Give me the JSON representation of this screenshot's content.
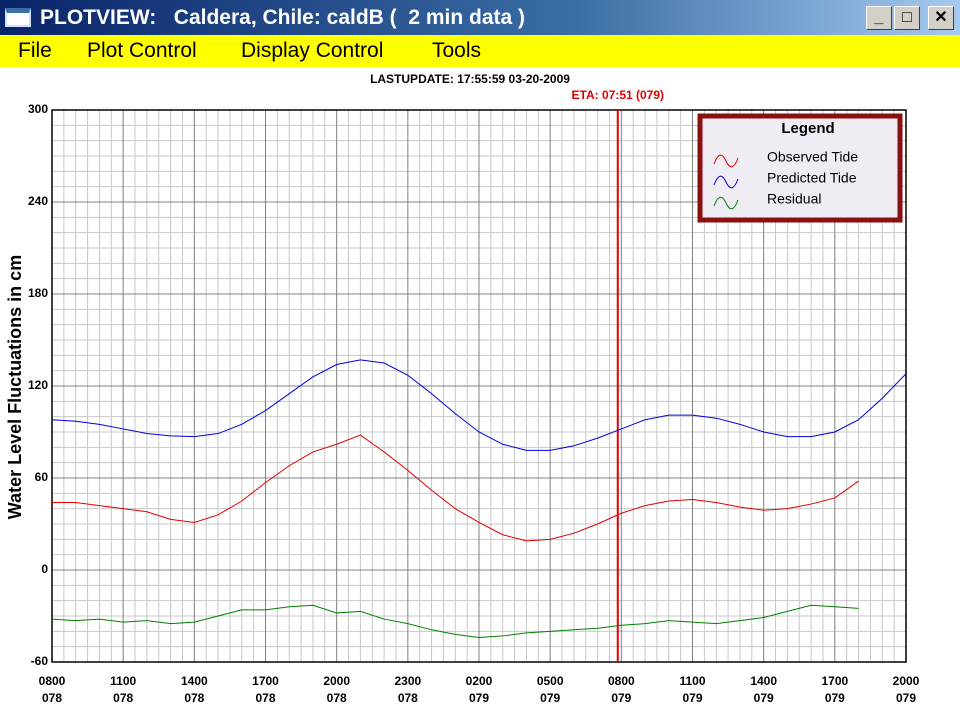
{
  "window": {
    "title": "PLOTVIEW:   Caldera, Chile: caldB (  2 min data )"
  },
  "menu": [
    "File",
    "Plot Control",
    "Display Control",
    "Tools"
  ],
  "chart_data": {
    "type": "line",
    "subtitle": "LASTUPDATE: 17:55:59  03-20-2009",
    "annotation": {
      "text": "ETA: 07:51 (079)",
      "x": 23.85,
      "color": "#e00000"
    },
    "y_label": "Water Level Fluctuations in cm",
    "x": [
      0,
      1,
      2,
      3,
      4,
      5,
      6,
      7,
      8,
      9,
      10,
      11,
      12,
      13,
      14,
      15,
      16,
      17,
      18,
      19,
      20,
      21,
      22,
      23,
      24,
      25,
      26,
      27,
      28,
      29,
      30,
      31,
      32,
      33,
      34,
      35,
      36
    ],
    "series": [
      {
        "name": "Observed Tide",
        "color": "#e00000",
        "values": [
          44,
          44,
          42,
          40,
          38,
          33,
          31,
          36,
          45,
          57,
          68,
          77,
          82,
          88,
          77,
          65,
          52,
          40,
          31,
          23,
          19,
          20,
          24,
          30,
          37,
          42,
          45,
          46,
          44,
          41,
          39,
          40,
          43,
          47,
          58,
          null,
          null
        ]
      },
      {
        "name": "Predicted Tide",
        "color": "#0000e0",
        "values": [
          98,
          97,
          95,
          92,
          89,
          87.5,
          87,
          89,
          95,
          104,
          115,
          126,
          134,
          137,
          135,
          127,
          115,
          102,
          90,
          82,
          78,
          78,
          81,
          86,
          92,
          98,
          101,
          101,
          99,
          95,
          90,
          87,
          87,
          90,
          98,
          112,
          128
        ]
      },
      {
        "name": "Residual",
        "color": "#008000",
        "values": [
          -32,
          -33,
          -32,
          -34,
          -33,
          -35,
          -34,
          -30,
          -26,
          -26,
          -24,
          -23,
          -28,
          -27,
          -32,
          -35,
          -39,
          -42,
          -44,
          -43,
          -41,
          -40,
          -39,
          -38,
          -36,
          -35,
          -33,
          -34,
          -35,
          -33,
          -31,
          -27,
          -23,
          -24,
          -25,
          null,
          null
        ]
      }
    ],
    "legend": {
      "title": "Legend",
      "position": "upper right"
    },
    "xlim": [
      0,
      36
    ],
    "xticks": [
      {
        "value": 0,
        "label": "0800",
        "day": "078"
      },
      {
        "value": 3,
        "label": "1100",
        "day": "078"
      },
      {
        "value": 6,
        "label": "1400",
        "day": "078"
      },
      {
        "value": 9,
        "label": "1700",
        "day": "078"
      },
      {
        "value": 12,
        "label": "2000",
        "day": "078"
      },
      {
        "value": 15,
        "label": "2300",
        "day": "078"
      },
      {
        "value": 18,
        "label": "0200",
        "day": "079"
      },
      {
        "value": 21,
        "label": "0500",
        "day": "079"
      },
      {
        "value": 24,
        "label": "0800",
        "day": "079"
      },
      {
        "value": 27,
        "label": "1100",
        "day": "079"
      },
      {
        "value": 30,
        "label": "1400",
        "day": "079"
      },
      {
        "value": 33,
        "label": "1700",
        "day": "079"
      },
      {
        "value": 36,
        "label": "2000",
        "day": "079"
      }
    ],
    "ylim": [
      -60,
      300
    ],
    "yticks": [
      -60,
      0,
      60,
      120,
      180,
      240,
      300
    ],
    "grid": true
  }
}
